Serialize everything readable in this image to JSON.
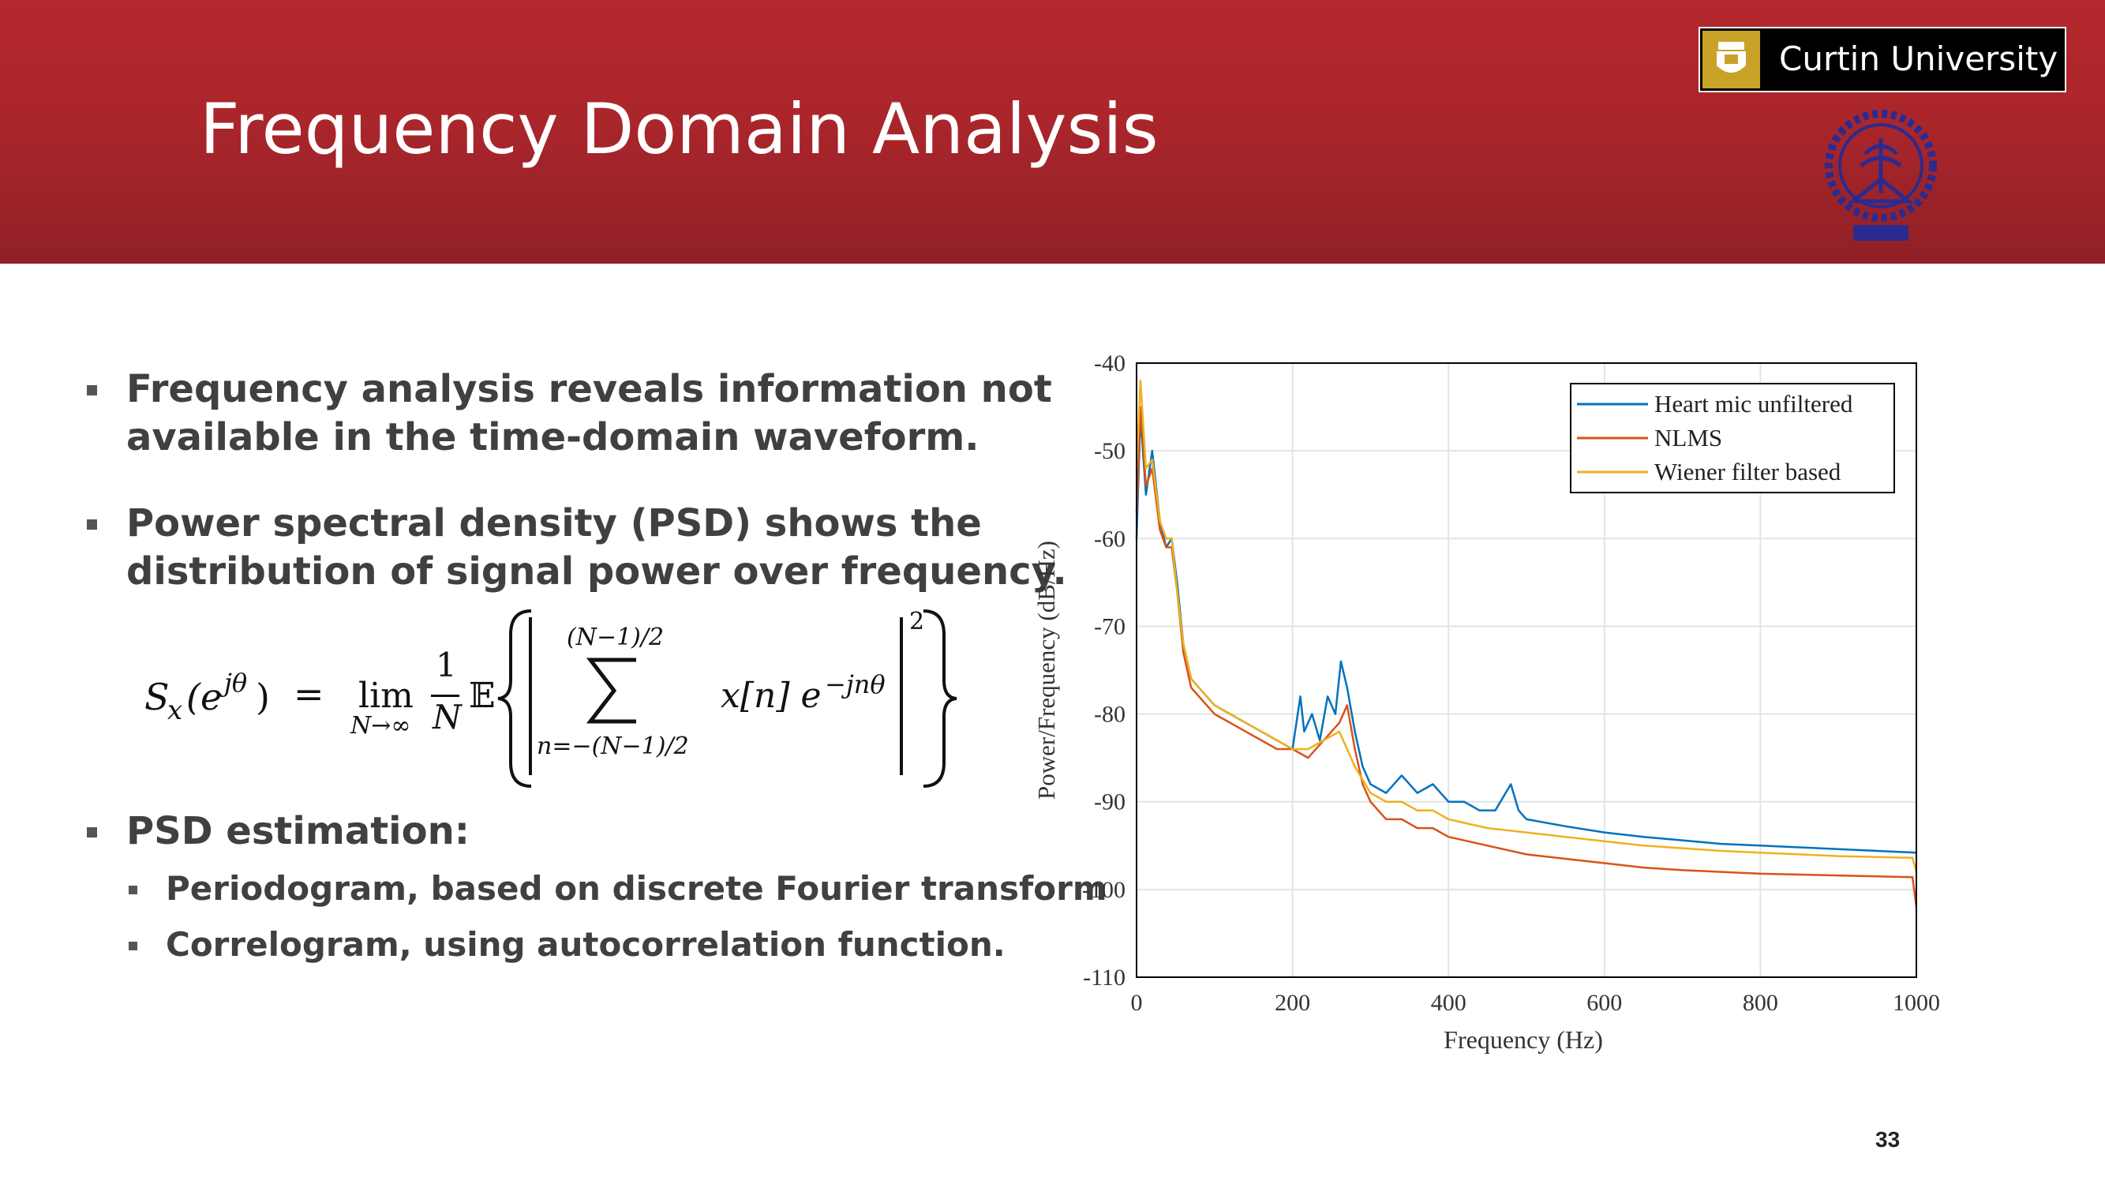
{
  "slide": {
    "title": "Frequency Domain Analysis",
    "page_number": "33",
    "logo_text": "Curtin University"
  },
  "bullets": [
    {
      "lines": [
        "Frequency analysis reveals information not",
        "available in the time-domain waveform."
      ]
    },
    {
      "lines": [
        "Power spectral density (PSD) shows the",
        "distribution of signal power over frequency."
      ]
    },
    {
      "lines": [
        "PSD estimation:"
      ]
    }
  ],
  "sub_bullets": [
    "Periodogram, based on discrete Fourier transform",
    "Correlogram, using autocorrelation function."
  ],
  "equation": {
    "lhs_S": "S",
    "lhs_sub": "x",
    "lhs_arg_open": "(e",
    "lhs_sup": "jθ",
    "lhs_arg_close": ")",
    "equals": "=",
    "lim": "lim",
    "lim_sub": "N→∞",
    "frac_num": "1",
    "frac_den": "N",
    "expect": "𝔼",
    "sum_upper": "(N−1)/2",
    "sum_lower": "n=−(N−1)/2",
    "term_x": "x[n] e",
    "term_sup": "−jnθ",
    "power": "2"
  },
  "chart_data": {
    "type": "line",
    "xlabel": "Frequency (Hz)",
    "ylabel": "Power/Frequency (dB/Hz)",
    "xlim": [
      0,
      1000
    ],
    "ylim": [
      -110,
      -40
    ],
    "xticks": [
      0,
      200,
      400,
      600,
      800,
      1000
    ],
    "yticks": [
      -40,
      -50,
      -60,
      -70,
      -80,
      -90,
      -100,
      -110
    ],
    "grid": true,
    "legend_position": "top-right",
    "series": [
      {
        "name": "Heart mic unfiltered",
        "color": "#0072bd",
        "x": [
          0,
          5,
          12,
          20,
          30,
          38,
          45,
          52,
          60,
          70,
          80,
          100,
          120,
          140,
          160,
          180,
          200,
          210,
          215,
          225,
          235,
          245,
          255,
          262,
          270,
          280,
          290,
          300,
          320,
          340,
          360,
          380,
          400,
          420,
          440,
          460,
          480,
          490,
          500,
          550,
          600,
          650,
          700,
          750,
          800,
          850,
          900,
          950,
          1000
        ],
        "y": [
          -60,
          -46,
          -55,
          -50,
          -58,
          -61,
          -60,
          -65,
          -72,
          -76,
          -77,
          -79,
          -80,
          -81,
          -82,
          -83,
          -84,
          -78,
          -82,
          -80,
          -83,
          -78,
          -80,
          -74,
          -77,
          -82,
          -86,
          -88,
          -89,
          -87,
          -89,
          -88,
          -90,
          -90,
          -91,
          -91,
          -88,
          -91,
          -92,
          -92.8,
          -93.5,
          -94,
          -94.4,
          -94.8,
          -95,
          -95.2,
          -95.4,
          -95.6,
          -95.8
        ]
      },
      {
        "name": "NLMS",
        "color": "#d95319",
        "x": [
          0,
          5,
          12,
          20,
          30,
          38,
          45,
          52,
          60,
          70,
          80,
          100,
          120,
          140,
          160,
          180,
          200,
          220,
          240,
          260,
          270,
          280,
          290,
          300,
          320,
          340,
          360,
          380,
          400,
          450,
          500,
          550,
          600,
          650,
          700,
          750,
          800,
          850,
          900,
          950,
          995,
          1000
        ],
        "y": [
          -57,
          -45,
          -54,
          -52,
          -59,
          -61,
          -61,
          -66,
          -73,
          -77,
          -78,
          -80,
          -81,
          -82,
          -83,
          -84,
          -84,
          -85,
          -83,
          -81,
          -79,
          -84,
          -88,
          -90,
          -92,
          -92,
          -93,
          -93,
          -94,
          -95,
          -96,
          -96.5,
          -97,
          -97.5,
          -97.8,
          -98,
          -98.2,
          -98.3,
          -98.4,
          -98.5,
          -98.6,
          -102
        ]
      },
      {
        "name": "Wiener filter based",
        "color": "#edb120",
        "x": [
          0,
          5,
          12,
          20,
          30,
          38,
          45,
          52,
          60,
          70,
          80,
          100,
          120,
          140,
          160,
          180,
          200,
          220,
          240,
          260,
          280,
          300,
          320,
          340,
          360,
          380,
          400,
          450,
          500,
          550,
          600,
          650,
          700,
          750,
          800,
          850,
          900,
          950,
          995,
          1000
        ],
        "y": [
          -52,
          -42,
          -52,
          -51,
          -58,
          -60,
          -60,
          -66,
          -72,
          -76,
          -77,
          -79,
          -80,
          -81,
          -82,
          -83,
          -84,
          -84,
          -83,
          -82,
          -86,
          -89,
          -90,
          -90,
          -91,
          -91,
          -92,
          -93,
          -93.5,
          -94,
          -94.5,
          -95,
          -95.3,
          -95.6,
          -95.8,
          -96,
          -96.2,
          -96.3,
          -96.4,
          -98
        ]
      }
    ]
  }
}
